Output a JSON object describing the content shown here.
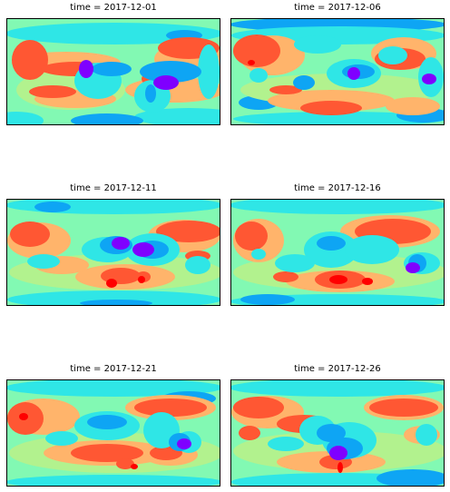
{
  "figure": {
    "titles": [
      "time = 2017-12-01",
      "time = 2017-12-06",
      "time = 2017-12-11",
      "time = 2017-12-16",
      "time = 2017-12-21",
      "time = 2017-12-26"
    ]
  },
  "chart_data": [
    {
      "type": "heatmap",
      "title": "time = 2017-12-01",
      "colormap": "rainbow",
      "levels": 7,
      "xlabel": "",
      "ylabel": "",
      "ticks": false
    },
    {
      "type": "heatmap",
      "title": "time = 2017-12-06",
      "colormap": "rainbow",
      "levels": 7,
      "xlabel": "",
      "ylabel": "",
      "ticks": false
    },
    {
      "type": "heatmap",
      "title": "time = 2017-12-11",
      "colormap": "rainbow",
      "levels": 7,
      "xlabel": "",
      "ylabel": "",
      "ticks": false
    },
    {
      "type": "heatmap",
      "title": "time = 2017-12-16",
      "colormap": "rainbow",
      "levels": 7,
      "xlabel": "",
      "ylabel": "",
      "ticks": false
    },
    {
      "type": "heatmap",
      "title": "time = 2017-12-21",
      "colormap": "rainbow",
      "levels": 7,
      "xlabel": "",
      "ylabel": "",
      "ticks": false
    },
    {
      "type": "heatmap",
      "title": "time = 2017-12-26",
      "colormap": "rainbow",
      "levels": 7,
      "xlabel": "",
      "ylabel": "",
      "ticks": false
    }
  ],
  "palette": {
    "level_colors": [
      "#7f00ff",
      "#0ea5f4",
      "#2fe6e6",
      "#82f9b3",
      "#b2f28e",
      "#ffb46b",
      "#ff5733",
      "#ff0000"
    ]
  }
}
